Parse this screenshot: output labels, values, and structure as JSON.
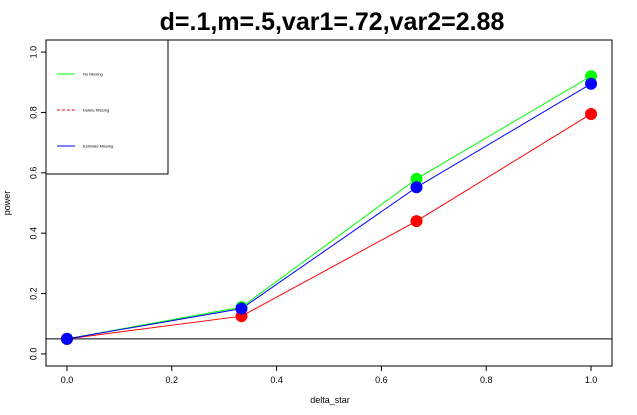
{
  "chart_data": {
    "type": "line",
    "title": "d=.1,m=.5,var1=.72,var2=2.88",
    "xlabel": "delta_star",
    "ylabel": "power",
    "xlim": [
      -0.04,
      1.04
    ],
    "ylim": [
      -0.04,
      1.04
    ],
    "x_ticks": [
      "0.0",
      "0.2",
      "0.4",
      "0.6",
      "0.8",
      "1.0"
    ],
    "y_ticks": [
      "0.0",
      "0.2",
      "0.4",
      "0.6",
      "0.8",
      "1.0"
    ],
    "x": [
      0,
      0.333,
      0.667,
      1.0
    ],
    "series": [
      {
        "name": "No Missing",
        "color": "#00ff00",
        "line_style": "solid",
        "values": [
          0.05,
          0.155,
          0.58,
          0.92
        ]
      },
      {
        "name": "Delete Missing",
        "color": "#ff0000",
        "line_style": "dashed",
        "values": [
          0.05,
          0.125,
          0.44,
          0.795
        ]
      },
      {
        "name": "Estimate Missing",
        "color": "#0000ff",
        "line_style": "solid",
        "values": [
          0.05,
          0.15,
          0.552,
          0.895
        ]
      }
    ],
    "reference_line_y": 0.05,
    "grid": false,
    "legend_position": "top-left"
  }
}
